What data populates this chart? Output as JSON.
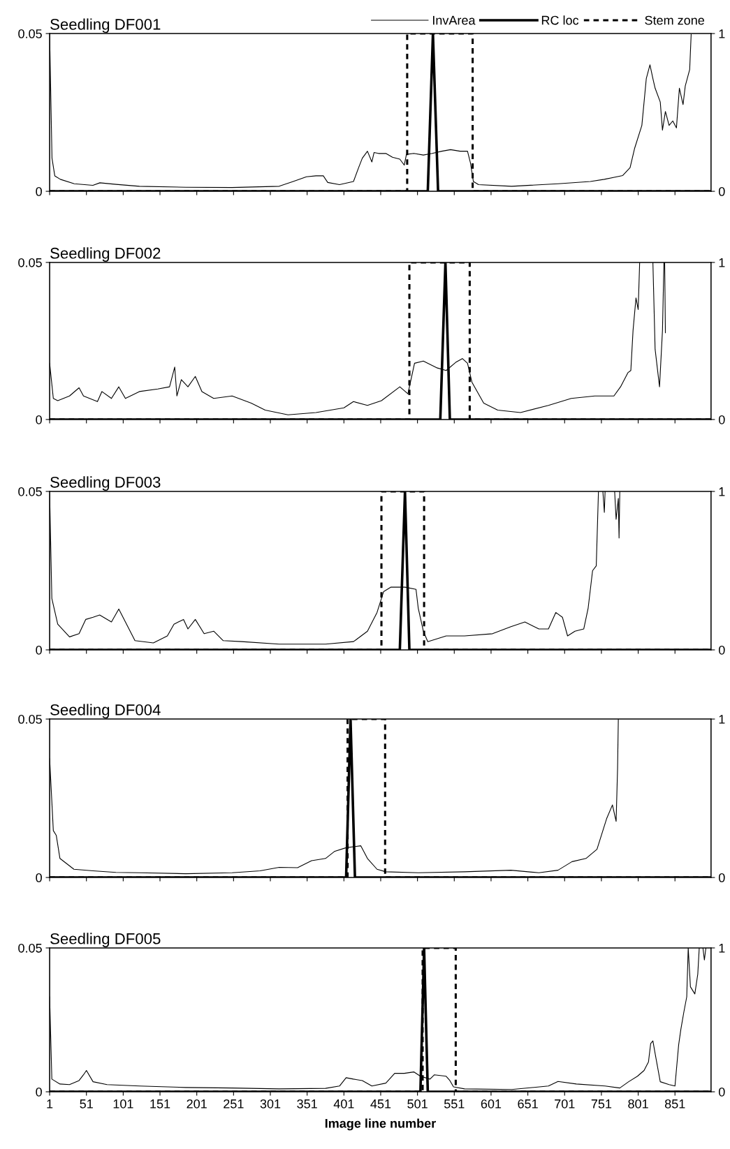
{
  "chart_data": [
    {
      "type": "line",
      "title": "Seedling DF001",
      "xlim": [
        1,
        900
      ],
      "xticks": [
        1,
        51,
        101,
        151,
        201,
        251,
        301,
        351,
        401,
        451,
        501,
        551,
        601,
        651,
        701,
        751,
        801,
        851
      ],
      "ylim": [
        0,
        0.05
      ],
      "yticks": [
        0,
        0.05
      ],
      "y2lim": [
        0,
        1
      ],
      "y2ticks": [
        0,
        1
      ],
      "tick_labels": "y",
      "legend": "top right",
      "grid": false,
      "series": [
        {
          "name": "InvArea",
          "color": "#000000",
          "line_style": "solid",
          "x": [
            1,
            4.2,
            8,
            15.5,
            34.5,
            59.8,
            69.3,
            91.4,
            123,
            186,
            249,
            313,
            332,
            350,
            363,
            373,
            379,
            395,
            414,
            421,
            426,
            433,
            439,
            442,
            448,
            458,
            467,
            477,
            483,
            486,
            496,
            509,
            521,
            534,
            546,
            559,
            569,
            573,
            577,
            584,
            629,
            692,
            736,
            755,
            780,
            790,
            796,
            806,
            812,
            817,
            821,
            824,
            831,
            834,
            838,
            843,
            848,
            853,
            857,
            862,
            865,
            871,
            873
          ],
          "values": [
            0.0497,
            0.0105,
            0.0049,
            0.0038,
            0.0024,
            0.0019,
            0.0027,
            0.0022,
            0.0016,
            0.0013,
            0.0012,
            0.0016,
            0.0031,
            0.0046,
            0.0049,
            0.0049,
            0.0028,
            0.0021,
            0.0031,
            0.0075,
            0.0105,
            0.0127,
            0.0093,
            0.0123,
            0.012,
            0.012,
            0.0108,
            0.0102,
            0.0083,
            0.0117,
            0.012,
            0.0115,
            0.012,
            0.0127,
            0.0132,
            0.0127,
            0.0127,
            0.009,
            0.0031,
            0.0021,
            0.0016,
            0.0024,
            0.0031,
            0.0038,
            0.005,
            0.0075,
            0.0135,
            0.0209,
            0.0357,
            0.0401,
            0.0357,
            0.0327,
            0.0283,
            0.0194,
            0.0253,
            0.0209,
            0.0223,
            0.0201,
            0.0327,
            0.0275,
            0.0334,
            0.0386,
            0.0497
          ]
        },
        {
          "name": "RC loc",
          "color": "#000000",
          "line_style": "solid",
          "axis": "y2",
          "x": [
            1,
            515,
            522,
            529,
            900
          ],
          "values": [
            0,
            0,
            1,
            0,
            0
          ]
        },
        {
          "name": "Stem zone",
          "color": "#000000",
          "line_style": "dashed",
          "axis": "y2",
          "x": [
            1,
            487,
            487,
            576,
            576,
            900
          ],
          "values": [
            0,
            0,
            1,
            1,
            0,
            0
          ]
        }
      ]
    },
    {
      "type": "line",
      "title": "Seedling DF002",
      "xlim": [
        1,
        900
      ],
      "xticks": [
        1,
        51,
        101,
        151,
        201,
        251,
        301,
        351,
        401,
        451,
        501,
        551,
        601,
        651,
        701,
        751,
        801,
        851
      ],
      "ylim": [
        0,
        0.05
      ],
      "yticks": [
        0,
        0.05
      ],
      "y2lim": [
        0,
        1
      ],
      "y2ticks": [
        0,
        1
      ],
      "tick_labels": "y",
      "grid": false,
      "series": [
        {
          "color": "#000000",
          "line_style": "solid",
          "x": [
            1,
            6,
            12,
            28,
            41,
            47,
            66,
            72,
            85,
            95,
            104,
            123,
            148,
            164,
            171,
            174,
            180,
            189,
            199,
            208,
            224,
            249,
            275,
            294,
            325,
            363,
            401,
            414,
            433,
            452,
            477,
            488,
            497,
            509,
            528,
            540,
            553,
            562,
            569,
            575,
            591,
            610,
            641,
            679,
            710,
            742,
            768,
            777,
            787,
            791,
            794,
            798,
            801,
            803,
            812,
            821,
            824,
            830,
            834,
            836,
            836.5,
            837,
            838
          ],
          "values": [
            0.0179,
            0.0067,
            0.006,
            0.0075,
            0.0101,
            0.0075,
            0.0057,
            0.0089,
            0.0067,
            0.0104,
            0.0067,
            0.0089,
            0.0097,
            0.0104,
            0.0167,
            0.0075,
            0.0127,
            0.0104,
            0.0137,
            0.0089,
            0.0067,
            0.0075,
            0.0052,
            0.003,
            0.0015,
            0.0022,
            0.0037,
            0.0057,
            0.0045,
            0.006,
            0.0104,
            0.0082,
            0.0179,
            0.0186,
            0.0164,
            0.0156,
            0.0182,
            0.0194,
            0.0179,
            0.0119,
            0.0052,
            0.003,
            0.0022,
            0.0045,
            0.0067,
            0.0075,
            0.0075,
            0.0104,
            0.0149,
            0.0156,
            0.0283,
            0.0387,
            0.035,
            0.05,
            null,
            0.05,
            0.0224,
            0.0104,
            0.0283,
            0.05,
            null,
            0.05,
            0.0276
          ]
        },
        {
          "color": "#000000",
          "line_style": "solid",
          "axis": "y2",
          "x": [
            1,
            532,
            539,
            545,
            900
          ],
          "values": [
            0,
            0,
            1,
            0,
            0
          ]
        },
        {
          "color": "#000000",
          "line_style": "dashed",
          "axis": "y2",
          "x": [
            1,
            490,
            490,
            572,
            572,
            900
          ],
          "values": [
            0,
            0,
            1,
            1,
            0,
            0
          ]
        }
      ]
    },
    {
      "type": "line",
      "title": "Seedling DF003",
      "xlim": [
        1,
        900
      ],
      "xticks": [
        1,
        51,
        101,
        151,
        201,
        251,
        301,
        351,
        401,
        451,
        501,
        551,
        601,
        651,
        701,
        751,
        801,
        851
      ],
      "ylim": [
        0,
        0.05
      ],
      "yticks": [
        0,
        0.05
      ],
      "y2lim": [
        0,
        1
      ],
      "y2ticks": [
        0,
        1
      ],
      "tick_labels": "y",
      "grid": false,
      "series": [
        {
          "color": "#000000",
          "line_style": "solid",
          "x": [
            1,
            4,
            12,
            28,
            41,
            50,
            60,
            69,
            85,
            95,
            104,
            117,
            142,
            161,
            170,
            183,
            189,
            199,
            211,
            224,
            237,
            262,
            313,
            376,
            414,
            433,
            446,
            455,
            465,
            484,
            499,
            502,
            509,
            515,
            540,
            565,
            603,
            628,
            647,
            666,
            679,
            689,
            698,
            705,
            715,
            727,
            733,
            739,
            744,
            747,
            750,
            753,
            755,
            756,
            762,
            769,
            771,
            774,
            775,
            776
          ],
          "values": [
            0.0493,
            0.0162,
            0.0081,
            0.0041,
            0.0051,
            0.0096,
            0.0103,
            0.011,
            0.0088,
            0.0129,
            0.0088,
            0.0029,
            0.0022,
            0.0044,
            0.0081,
            0.0096,
            0.0066,
            0.0096,
            0.0051,
            0.0059,
            0.0029,
            0.0026,
            0.0018,
            0.0018,
            0.0026,
            0.0059,
            0.0118,
            0.0184,
            0.0198,
            0.0198,
            0.0191,
            0.0132,
            0.0059,
            0.0026,
            0.0044,
            0.0044,
            0.0051,
            0.0073,
            0.0088,
            0.0066,
            0.0066,
            0.0118,
            0.0103,
            0.0044,
            0.0059,
            0.0066,
            0.0132,
            0.025,
            0.0265,
            0.05,
            null,
            0.05,
            0.0434,
            0.05,
            null,
            0.05,
            0.0412,
            0.0478,
            0.0353,
            0.05
          ]
        },
        {
          "color": "#000000",
          "line_style": "solid",
          "axis": "y2",
          "x": [
            1,
            477,
            484,
            490,
            900
          ],
          "values": [
            0,
            0,
            1,
            0,
            0
          ]
        },
        {
          "color": "#000000",
          "line_style": "dashed",
          "axis": "y2",
          "x": [
            1,
            452,
            452,
            510,
            510,
            900
          ],
          "values": [
            0,
            0,
            1,
            1,
            0,
            0
          ]
        }
      ]
    },
    {
      "type": "line",
      "title": "Seedling DF004",
      "xlim": [
        1,
        900
      ],
      "xticks": [
        1,
        51,
        101,
        151,
        201,
        251,
        301,
        351,
        401,
        451,
        501,
        551,
        601,
        651,
        701,
        751,
        801,
        851
      ],
      "ylim": [
        0,
        0.05
      ],
      "yticks": [
        0,
        0.05
      ],
      "y2lim": [
        0,
        1
      ],
      "y2ticks": [
        0,
        1
      ],
      "tick_labels": "y",
      "grid": false,
      "series": [
        {
          "color": "#000000",
          "line_style": "solid",
          "x": [
            1,
            6,
            10,
            15,
            34,
            60,
            91,
            123,
            186,
            249,
            287,
            313,
            338,
            357,
            376,
            388,
            404,
            424,
            433,
            446,
            458,
            502,
            565,
            628,
            666,
            692,
            711,
            730,
            745,
            758,
            766,
            771,
            773,
            774
          ],
          "values": [
            0.0375,
            0.0148,
            0.0133,
            0.006,
            0.0026,
            0.0021,
            0.0016,
            0.0015,
            0.0012,
            0.0015,
            0.0021,
            0.0032,
            0.0031,
            0.0053,
            0.006,
            0.0082,
            0.0094,
            0.01,
            0.006,
            0.0026,
            0.0018,
            0.0015,
            0.0018,
            0.0023,
            0.0015,
            0.0023,
            0.005,
            0.006,
            0.0089,
            0.0185,
            0.0229,
            0.0177,
            0.0346,
            0.05
          ]
        },
        {
          "color": "#000000",
          "line_style": "solid",
          "axis": "y2",
          "x": [
            1,
            404,
            410,
            416,
            900
          ],
          "values": [
            0,
            0,
            1,
            0,
            0
          ]
        },
        {
          "color": "#000000",
          "line_style": "dashed",
          "axis": "y2",
          "x": [
            1,
            406,
            406,
            457,
            457,
            900
          ],
          "values": [
            0,
            0,
            1,
            1,
            0,
            0
          ]
        }
      ]
    },
    {
      "type": "line",
      "title": "Seedling DF005",
      "xlabel": "Image line number",
      "xlim": [
        1,
        900
      ],
      "xticks": [
        1,
        51,
        101,
        151,
        201,
        251,
        301,
        351,
        401,
        451,
        501,
        551,
        601,
        651,
        701,
        751,
        801,
        851
      ],
      "ylim": [
        0,
        0.05
      ],
      "yticks": [
        0,
        0.05
      ],
      "y2lim": [
        0,
        1
      ],
      "y2ticks": [
        0,
        1
      ],
      "grid": false,
      "series": [
        {
          "color": "#000000",
          "line_style": "solid",
          "x": [
            1,
            4,
            15,
            28,
            41,
            47,
            51,
            60,
            79,
            123,
            186,
            249,
            313,
            376,
            395,
            404,
            414,
            426,
            439,
            458,
            470,
            483,
            496,
            505,
            518,
            524,
            540,
            545,
            550,
            565,
            629,
            679,
            692,
            717,
            756,
            776,
            788,
            800,
            809,
            815,
            818,
            821,
            824,
            831,
            843,
            851,
            856,
            859,
            863,
            867,
            869,
            872,
            878,
            882,
            884,
            886,
            889,
            891,
            893
          ],
          "values": [
            0.033,
            0.0044,
            0.0027,
            0.0025,
            0.0039,
            0.0059,
            0.0074,
            0.0035,
            0.0025,
            0.002,
            0.0015,
            0.0013,
            0.001,
            0.0012,
            0.002,
            0.0049,
            0.0044,
            0.0039,
            0.002,
            0.003,
            0.0064,
            0.0064,
            0.0069,
            0.0054,
            0.0044,
            0.0059,
            0.0054,
            0.0039,
            0.0017,
            0.001,
            0.0008,
            0.002,
            0.0036,
            0.0027,
            0.002,
            0.0013,
            0.0035,
            0.0054,
            0.0074,
            0.0104,
            0.0168,
            0.0177,
            0.0133,
            0.0035,
            0.0025,
            0.002,
            0.0163,
            0.0217,
            0.0276,
            0.033,
            0.05,
            0.0365,
            0.034,
            0.0409,
            0.05,
            null,
            0.05,
            0.0458,
            0.05
          ]
        },
        {
          "color": "#000000",
          "line_style": "solid",
          "axis": "y2",
          "x": [
            1,
            505,
            510,
            515,
            900
          ],
          "values": [
            0,
            0,
            1,
            0,
            0
          ]
        },
        {
          "color": "#000000",
          "line_style": "dashed",
          "axis": "y2",
          "x": [
            1,
            508,
            508,
            553,
            553,
            900
          ],
          "values": [
            0,
            0,
            1,
            1,
            0,
            0
          ]
        }
      ]
    }
  ]
}
